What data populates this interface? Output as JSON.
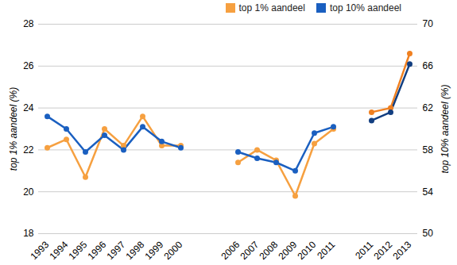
{
  "chart_data": {
    "type": "line",
    "categories": [
      "1993",
      "1994",
      "1995",
      "1996",
      "1997",
      "1998",
      "1999",
      "2000",
      null,
      null,
      "2006",
      "2007",
      "2008",
      "2009",
      "2010",
      "2011",
      null,
      "2011",
      "2012",
      "2013"
    ],
    "ylabel": "top 1% aandeel (%)",
    "y2label": "top 10% aandeel (%)",
    "ylim": [
      18,
      28
    ],
    "yticks": [
      18,
      20,
      22,
      24,
      26,
      28
    ],
    "y2lim": [
      50,
      70
    ],
    "y2ticks": [
      50,
      54,
      58,
      62,
      66,
      70
    ],
    "grid": true,
    "legend": "top-right",
    "series": [
      {
        "name": "top 1% aandeel",
        "color": "#f6a040",
        "marker": "circle",
        "values": [
          22.1,
          22.5,
          20.7,
          23.0,
          22.2,
          23.6,
          22.2,
          22.2,
          null,
          null,
          21.4,
          22.0,
          21.5,
          19.8,
          22.3,
          23.0,
          null,
          23.8,
          24.0,
          26.6
        ],
        "colors": [
          "#f6a040",
          "#f6a040",
          "#f6a040",
          "#f6a040",
          "#f6a040",
          "#f6a040",
          "#f6a040",
          "#f6a040",
          "#f6a040",
          "#f6a040",
          "#f6a040",
          "#f6a040",
          "#f6a040",
          "#f6a040",
          "#f6a040",
          "#f6a040",
          "#f08020",
          "#f08020",
          "#f08020",
          "#f08020"
        ]
      },
      {
        "name": "top 10% aandeel",
        "color": "#1a5fc0",
        "marker": "circle",
        "axis": "y2",
        "values": [
          61.2,
          60.0,
          57.8,
          59.4,
          58.0,
          60.2,
          58.8,
          58.2,
          null,
          null,
          57.8,
          57.2,
          56.8,
          56.0,
          59.6,
          60.2,
          null,
          60.8,
          61.6,
          66.2
        ],
        "colors": [
          "#1a5fc0",
          "#1a5fc0",
          "#1a5fc0",
          "#1a5fc0",
          "#1a5fc0",
          "#1a5fc0",
          "#1a5fc0",
          "#1a5fc0",
          "#1a5fc0",
          "#1a5fc0",
          "#1a5fc0",
          "#1a5fc0",
          "#1a5fc0",
          "#1a5fc0",
          "#1a5fc0",
          "#1a5fc0",
          "#123e80",
          "#123e80",
          "#123e80",
          "#123e80"
        ]
      }
    ]
  }
}
